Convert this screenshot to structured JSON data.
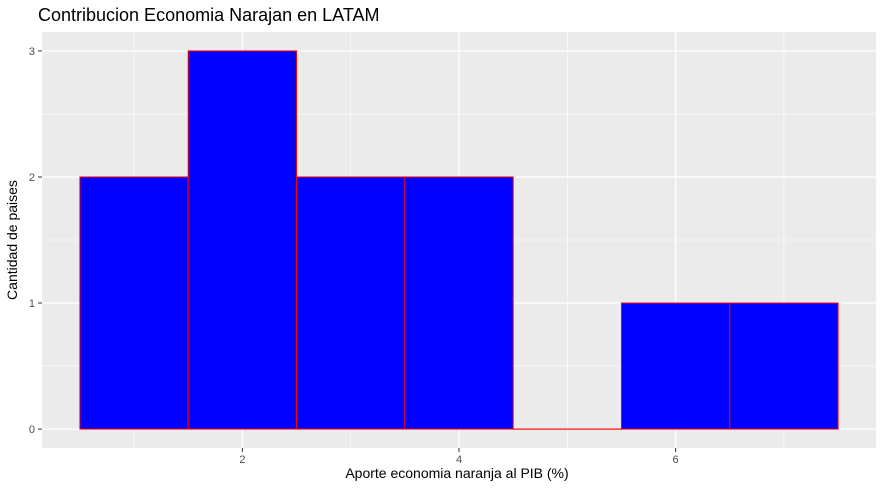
{
  "chart_data": {
    "type": "bar",
    "title": "Contribucion Economia Narajan en LATAM",
    "xlabel": "Aporte economia naranja al PIB (%)",
    "ylabel": "Cantidad de paises",
    "bins": [
      {
        "x0": 0.5,
        "x1": 1.5,
        "count": 2
      },
      {
        "x0": 1.5,
        "x1": 2.5,
        "count": 3
      },
      {
        "x0": 2.5,
        "x1": 3.5,
        "count": 2
      },
      {
        "x0": 3.5,
        "x1": 4.5,
        "count": 2
      },
      {
        "x0": 4.5,
        "x1": 5.5,
        "count": 0
      },
      {
        "x0": 5.5,
        "x1": 6.5,
        "count": 1
      },
      {
        "x0": 6.5,
        "x1": 7.5,
        "count": 1
      }
    ],
    "x_ticks": [
      2,
      4,
      6
    ],
    "y_ticks": [
      0,
      1,
      2,
      3
    ],
    "xlim": [
      0.15,
      7.85
    ],
    "ylim": [
      -0.15,
      3.15
    ],
    "grid": true,
    "colors": {
      "bar_fill": "#0000ff",
      "bar_stroke": "#ff0000",
      "panel_background": "#ebebeb",
      "grid": "#ffffff"
    }
  }
}
